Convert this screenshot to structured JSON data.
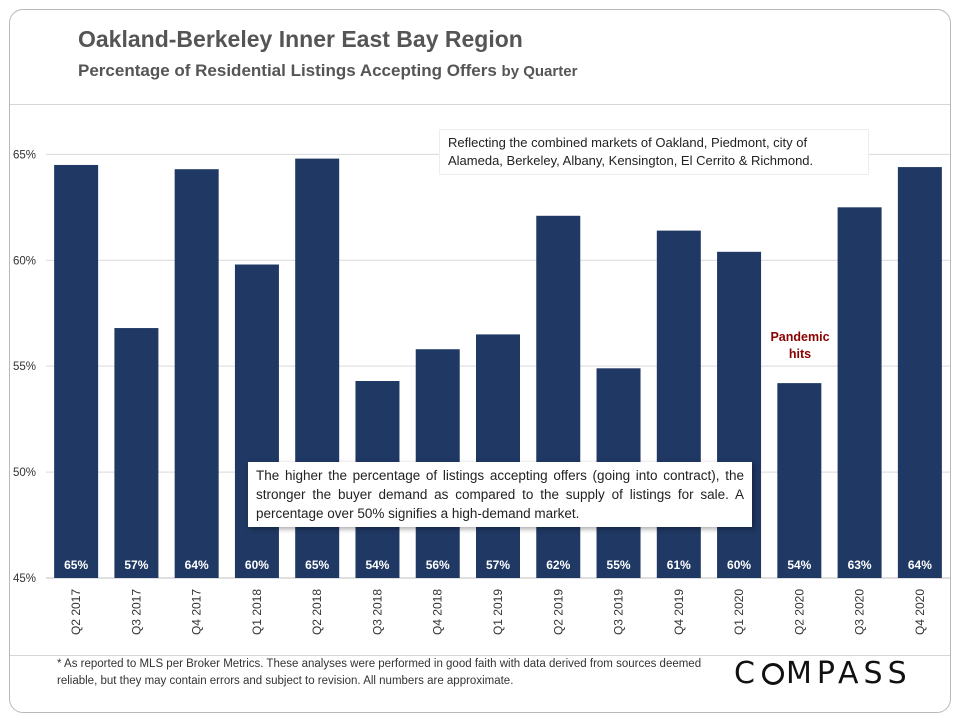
{
  "header": {
    "title": "Oakland-Berkeley Inner East Bay Region",
    "subtitle_main": "Percentage of Residential Listings Accepting Offers",
    "subtitle_suffix": "by Quarter"
  },
  "annotations": {
    "top_note": "Reflecting the combined markets of Oakland, Piedmont, city of Alameda, Berkeley, Albany, Kensington, El Cerrito & Richmond.",
    "bottom_note": "The higher the percentage of listings accepting offers (going into contract), the stronger the buyer demand as compared to the supply of listings for sale. A percentage over 50% signifies a high-demand market.",
    "pandemic_label_line1": "Pandemic",
    "pandemic_label_line2": "hits"
  },
  "footer": {
    "footnote": "* As reported to MLS per Broker Metrics. These analyses were performed in good faith with data derived from sources deemed reliable, but they may contain errors and subject to revision. All numbers are approximate.",
    "logo_before": "C",
    "logo_after": "MPASS"
  },
  "colors": {
    "bar": "#1f3864",
    "bar_label": "#ffffff",
    "grid": "#d9d9d9",
    "axis_text": "#333333",
    "pandemic": "#8b0000"
  },
  "chart_data": {
    "type": "bar",
    "categories": [
      "Q2 2017",
      "Q3 2017",
      "Q4 2017",
      "Q1 2018",
      "Q2 2018",
      "Q3 2018",
      "Q4 2018",
      "Q1 2019",
      "Q2 2019",
      "Q3 2019",
      "Q4 2019",
      "Q1 2020",
      "Q2 2020",
      "Q3 2020",
      "Q4 2020"
    ],
    "values": [
      64.5,
      56.8,
      64.3,
      59.8,
      64.8,
      54.3,
      55.8,
      56.5,
      62.1,
      54.9,
      61.4,
      60.4,
      54.2,
      62.5,
      64.4
    ],
    "data_labels": [
      "65%",
      "57%",
      "64%",
      "60%",
      "65%",
      "54%",
      "56%",
      "57%",
      "62%",
      "55%",
      "61%",
      "60%",
      "54%",
      "63%",
      "64%"
    ],
    "ylim": [
      45,
      67
    ],
    "yticks": [
      45,
      50,
      55,
      60,
      65
    ],
    "ytick_labels": [
      "45%",
      "50%",
      "55%",
      "60%",
      "65%"
    ],
    "grid": true,
    "xlabel": "",
    "ylabel": ""
  }
}
